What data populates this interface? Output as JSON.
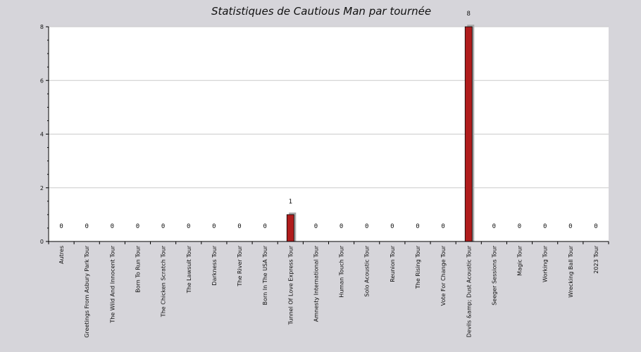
{
  "chart_data": {
    "type": "bar",
    "title": "Statistiques de Cautious Man par tournée",
    "xlabel": "",
    "ylabel": "",
    "ylim": [
      0,
      8
    ],
    "yticks": [
      0,
      2,
      4,
      6,
      8
    ],
    "grid": true,
    "categories": [
      "Autres",
      "Greetings From Asbury Park Tour",
      "The Wild And Innocent Tour",
      "Born To Run Tour",
      "The Chicken Scratch Tour",
      "The Lawsuit Tour",
      "Darkness Tour",
      "The River Tour",
      "Born In The USA Tour",
      "Tunnel Of Love Express Tour",
      "Amnesty International Tour",
      "Human Touch Tour",
      "Solo Acoustic Tour",
      "Reunion Tour",
      "The Rising Tour",
      "Vote For Change Tour",
      "Devils &amp; Dust Acoustic Tour",
      "Seeger Sessions Tour",
      "Magic Tour",
      "Working Tour",
      "Wrecking Ball Tour",
      "2023 Tour"
    ],
    "values": [
      0,
      0,
      0,
      0,
      0,
      0,
      0,
      0,
      0,
      1,
      0,
      0,
      0,
      0,
      0,
      0,
      8,
      0,
      0,
      0,
      0,
      0
    ],
    "bar_color": "#b01c1c",
    "shadow_color": "#a9a9a9",
    "plot_background": "#ffffff",
    "page_background": "#d6d5da",
    "gridline_color": "#cccccc"
  }
}
